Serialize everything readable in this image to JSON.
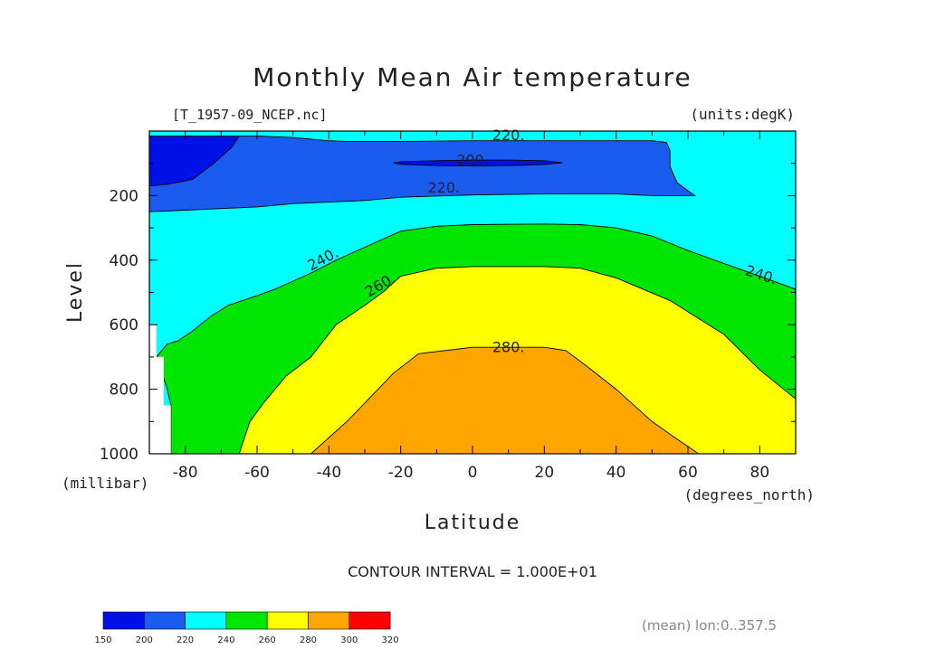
{
  "chart_data": {
    "type": "contour",
    "title": "Monthly Mean Air temperature",
    "file_label": "[T_1957-09_NCEP.nc]",
    "units_label": "(units:degK)",
    "xlabel": "Latitude",
    "x_units": "(degrees_north)",
    "ylabel": "Level",
    "y_units": "(millibar)",
    "xlim": [
      -90,
      90
    ],
    "ylim": [
      1000,
      0
    ],
    "x_ticks": [
      -80,
      -60,
      -40,
      -20,
      0,
      20,
      40,
      60,
      80
    ],
    "y_ticks": [
      200,
      400,
      600,
      800,
      1000
    ],
    "contour_interval_label": "CONTOUR INTERVAL = 1.000E+01",
    "averaging_note": "(mean) lon:0..357.5",
    "colorbar": {
      "levels": [
        150,
        200,
        220,
        240,
        260,
        280,
        300,
        320
      ],
      "colors": [
        "#0011e6",
        "#1a5cf0",
        "#00ffff",
        "#00e600",
        "#ffff00",
        "#ffa500",
        "#ff0000"
      ]
    },
    "contour_labels": [
      {
        "text": "220.",
        "lat": 10,
        "level": 28
      },
      {
        "text": "200.",
        "lat": 0,
        "level": 105
      },
      {
        "text": "220.",
        "lat": -8,
        "level": 190
      },
      {
        "text": "240.",
        "lat": -41,
        "level": 410
      },
      {
        "text": "260.",
        "lat": -25,
        "level": 490
      },
      {
        "text": "280.",
        "lat": 10,
        "level": 685
      },
      {
        "text": "240.",
        "lat": 80,
        "level": 460
      }
    ],
    "filled_regions": [
      {
        "color_index": 1,
        "name": "T 200-220",
        "points": [
          [
            -90,
            15
          ],
          [
            -85,
            15
          ],
          [
            -80,
            15
          ],
          [
            -75,
            15
          ],
          [
            -70,
            15
          ],
          [
            -65,
            15
          ],
          [
            -60,
            15
          ],
          [
            -50,
            20
          ],
          [
            -45,
            25
          ],
          [
            -40,
            30
          ],
          [
            -35,
            32
          ],
          [
            -30,
            32
          ],
          [
            -20,
            32
          ],
          [
            0,
            30
          ],
          [
            20,
            30
          ],
          [
            40,
            30
          ],
          [
            50,
            30
          ],
          [
            54,
            35
          ],
          [
            55,
            60
          ],
          [
            55,
            110
          ],
          [
            57,
            160
          ],
          [
            60,
            185
          ],
          [
            62,
            200
          ],
          [
            50,
            200
          ],
          [
            40,
            195
          ],
          [
            20,
            195
          ],
          [
            0,
            198
          ],
          [
            -20,
            205
          ],
          [
            -30,
            215
          ],
          [
            -50,
            225
          ],
          [
            -60,
            235
          ],
          [
            -70,
            240
          ],
          [
            -80,
            245
          ],
          [
            -90,
            250
          ]
        ]
      },
      {
        "color_index": 0,
        "name": "T 150-200 (south)",
        "points": [
          [
            -90,
            15
          ],
          [
            -65,
            15
          ],
          [
            -67,
            50
          ],
          [
            -72,
            100
          ],
          [
            -78,
            150
          ],
          [
            -85,
            165
          ],
          [
            -90,
            170
          ]
        ]
      },
      {
        "color_index": 0,
        "name": "T 150-200 (centre)",
        "points": [
          [
            -20,
            95
          ],
          [
            -10,
            92
          ],
          [
            0,
            90
          ],
          [
            10,
            90
          ],
          [
            20,
            92
          ],
          [
            25,
            98
          ],
          [
            20,
            104
          ],
          [
            10,
            107
          ],
          [
            0,
            108
          ],
          [
            -10,
            107
          ],
          [
            -20,
            103
          ],
          [
            -22,
            99
          ]
        ]
      },
      {
        "color_index": 3,
        "name": "T 240-260",
        "points": [
          [
            -84,
            1000
          ],
          [
            -84,
            850
          ],
          [
            -85,
            800
          ],
          [
            -88,
            700
          ],
          [
            -85,
            660
          ],
          [
            -82,
            650
          ],
          [
            -78,
            620
          ],
          [
            -73,
            575
          ],
          [
            -68,
            540
          ],
          [
            -60,
            510
          ],
          [
            -55,
            490
          ],
          [
            -45,
            440
          ],
          [
            -38,
            400
          ],
          [
            -30,
            360
          ],
          [
            -20,
            310
          ],
          [
            -10,
            295
          ],
          [
            0,
            290
          ],
          [
            20,
            288
          ],
          [
            30,
            290
          ],
          [
            40,
            300
          ],
          [
            50,
            325
          ],
          [
            60,
            370
          ],
          [
            70,
            410
          ],
          [
            80,
            450
          ],
          [
            90,
            490
          ],
          [
            90,
            1000
          ]
        ]
      },
      {
        "color_index": 4,
        "name": "T 260-280",
        "points": [
          [
            -65,
            1000
          ],
          [
            -62,
            900
          ],
          [
            -58,
            840
          ],
          [
            -52,
            760
          ],
          [
            -45,
            700
          ],
          [
            -38,
            600
          ],
          [
            -30,
            540
          ],
          [
            -25,
            500
          ],
          [
            -20,
            450
          ],
          [
            -10,
            425
          ],
          [
            0,
            420
          ],
          [
            20,
            420
          ],
          [
            30,
            425
          ],
          [
            40,
            455
          ],
          [
            55,
            525
          ],
          [
            60,
            560
          ],
          [
            70,
            630
          ],
          [
            80,
            740
          ],
          [
            90,
            830
          ],
          [
            90,
            1000
          ]
        ]
      },
      {
        "color_index": 5,
        "name": "T 280-300",
        "points": [
          [
            -45,
            1000
          ],
          [
            -35,
            900
          ],
          [
            -28,
            820
          ],
          [
            -22,
            750
          ],
          [
            -15,
            690
          ],
          [
            0,
            670
          ],
          [
            20,
            670
          ],
          [
            26,
            680
          ],
          [
            32,
            730
          ],
          [
            40,
            800
          ],
          [
            50,
            900
          ],
          [
            57,
            955
          ],
          [
            63,
            1000
          ]
        ]
      }
    ]
  }
}
